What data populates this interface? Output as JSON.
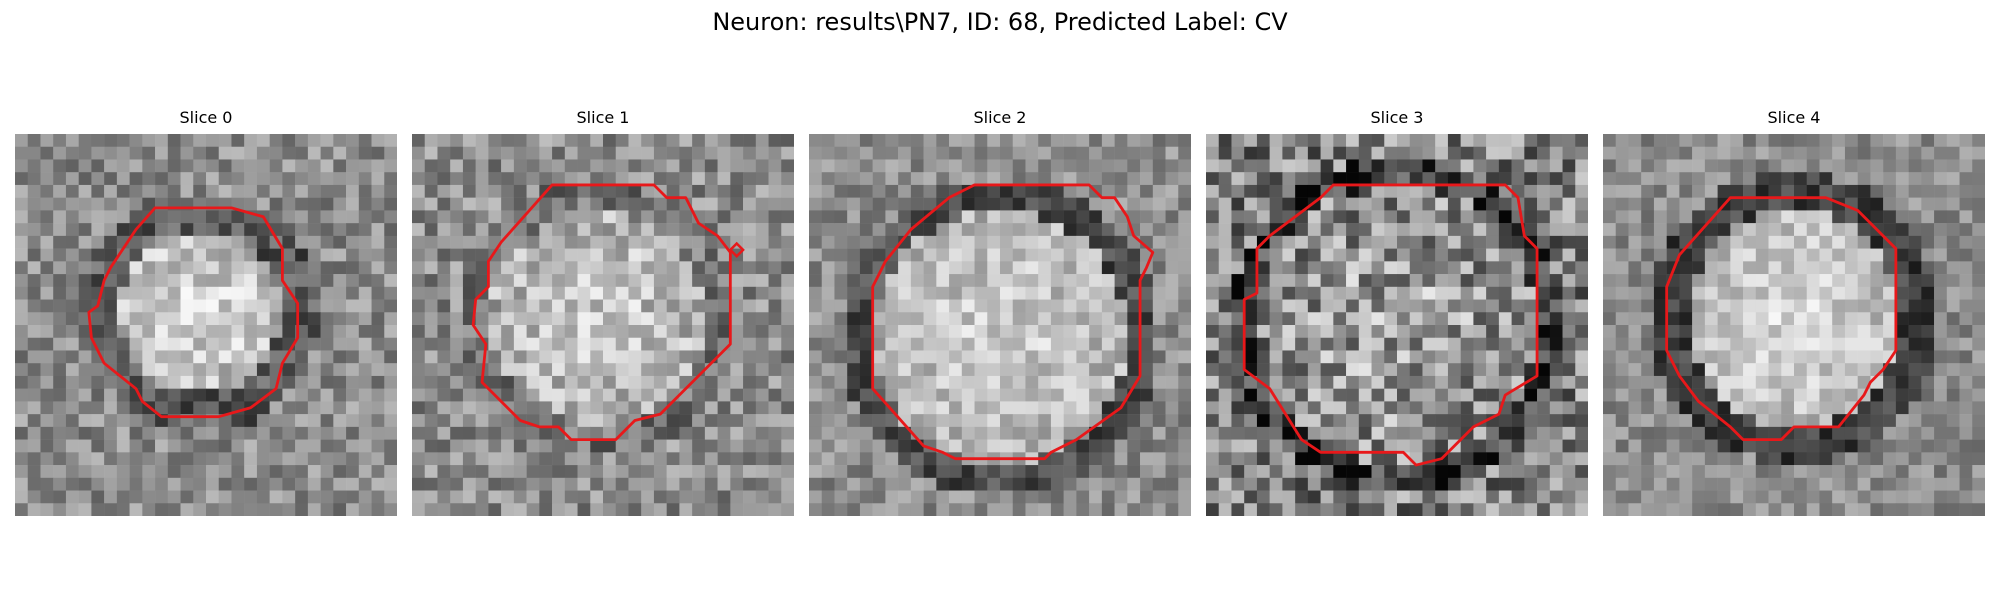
{
  "figure": {
    "title": "Neuron: results\\PN7, ID: 68, Predicted Label: CV"
  },
  "panels": [
    {
      "title": "Slice 0",
      "contour_color": "#e8181a"
    },
    {
      "title": "Slice 1",
      "contour_color": "#e8181a"
    },
    {
      "title": "Slice 2",
      "contour_color": "#e8181a"
    },
    {
      "title": "Slice 3",
      "contour_color": "#e8181a"
    },
    {
      "title": "Slice 4",
      "contour_color": "#e8181a"
    }
  ]
}
